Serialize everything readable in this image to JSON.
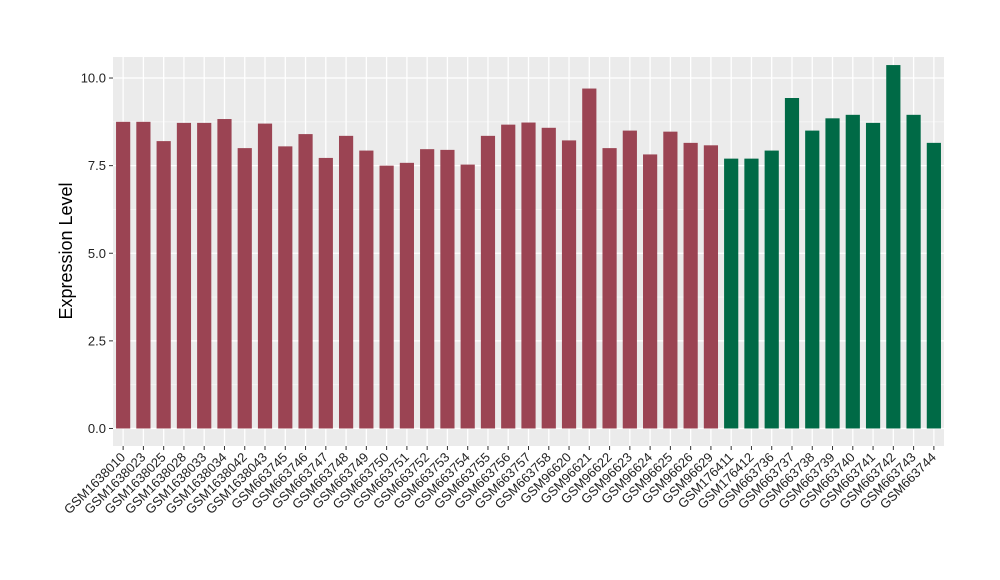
{
  "chart_data": {
    "type": "bar",
    "ylabel": "Expression Level",
    "xlabel": "",
    "ylim": [
      -0.5,
      10.6
    ],
    "yticks": [
      0.0,
      2.5,
      5.0,
      7.5,
      10.0
    ],
    "ytick_labels": [
      "0.0",
      "2.5",
      "5.0",
      "7.5",
      "10.0"
    ],
    "grid": true,
    "legend": "none",
    "colors": {
      "group_a": "#9b4453",
      "group_b": "#006a46",
      "panel_bg": "#ebebeb",
      "grid_major": "#ffffff"
    },
    "categories": [
      "GSM1638010",
      "GSM1638023",
      "GSM1638025",
      "GSM1638028",
      "GSM1638033",
      "GSM1638034",
      "GSM1638042",
      "GSM1638043",
      "GSM663745",
      "GSM663746",
      "GSM663747",
      "GSM663748",
      "GSM663749",
      "GSM663750",
      "GSM663751",
      "GSM663752",
      "GSM663753",
      "GSM663754",
      "GSM663755",
      "GSM663756",
      "GSM663757",
      "GSM663758",
      "GSM96620",
      "GSM96621",
      "GSM96622",
      "GSM96623",
      "GSM96624",
      "GSM96625",
      "GSM96626",
      "GSM96629",
      "GSM176411",
      "GSM176412",
      "GSM663736",
      "GSM663737",
      "GSM663738",
      "GSM663739",
      "GSM663740",
      "GSM663741",
      "GSM663742",
      "GSM663743",
      "GSM663744"
    ],
    "values": [
      8.75,
      8.75,
      8.2,
      8.72,
      8.72,
      8.83,
      8.0,
      8.7,
      8.05,
      8.4,
      7.72,
      8.35,
      7.93,
      7.5,
      7.58,
      7.97,
      7.95,
      7.53,
      8.35,
      8.67,
      8.73,
      8.58,
      8.22,
      9.7,
      8.0,
      8.5,
      7.82,
      8.47,
      8.15,
      8.08,
      7.7,
      7.7,
      7.93,
      9.43,
      8.5,
      8.85,
      8.95,
      8.72,
      10.37,
      8.95,
      8.15
    ],
    "groups": [
      "a",
      "a",
      "a",
      "a",
      "a",
      "a",
      "a",
      "a",
      "a",
      "a",
      "a",
      "a",
      "a",
      "a",
      "a",
      "a",
      "a",
      "a",
      "a",
      "a",
      "a",
      "a",
      "a",
      "a",
      "a",
      "a",
      "a",
      "a",
      "a",
      "a",
      "b",
      "b",
      "b",
      "b",
      "b",
      "b",
      "b",
      "b",
      "b",
      "b",
      "b"
    ]
  }
}
